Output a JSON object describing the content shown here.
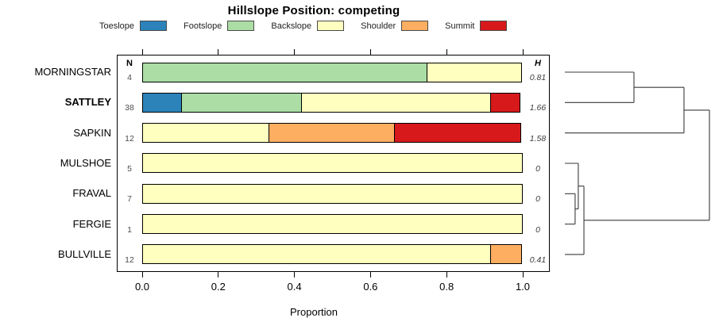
{
  "title": "Hillslope Position: competing",
  "columns": {
    "n": "N",
    "h": "H"
  },
  "axis": {
    "label": "Proportion",
    "ticks": [
      "0.0",
      "0.2",
      "0.4",
      "0.6",
      "0.8",
      "1.0"
    ]
  },
  "chart_data": {
    "type": "bar",
    "stacked": true,
    "orientation": "horizontal",
    "title": "Hillslope Position: competing",
    "xlabel": "Proportion",
    "xlim": [
      0,
      1
    ],
    "legend_position": "top",
    "categories": [
      {
        "name": "Toeslope",
        "color": "#2B83BA"
      },
      {
        "name": "Footslope",
        "color": "#ABDDA4"
      },
      {
        "name": "Backslope",
        "color": "#FFFFBF"
      },
      {
        "name": "Shoulder",
        "color": "#FDAE61"
      },
      {
        "name": "Summit",
        "color": "#D7191C"
      }
    ],
    "rows": [
      {
        "label": "MORNINGSTAR",
        "bold": false,
        "n": "4",
        "h": "0.81",
        "segments": [
          {
            "category": "Footslope",
            "value": 0.75
          },
          {
            "category": "Backslope",
            "value": 0.25
          }
        ]
      },
      {
        "label": "SATTLEY",
        "bold": true,
        "n": "38",
        "h": "1.66",
        "segments": [
          {
            "category": "Toeslope",
            "value": 0.105
          },
          {
            "category": "Footslope",
            "value": 0.316
          },
          {
            "category": "Backslope",
            "value": 0.5
          },
          {
            "category": "Summit",
            "value": 0.079
          }
        ]
      },
      {
        "label": "SAPKIN",
        "bold": false,
        "n": "12",
        "h": "1.58",
        "segments": [
          {
            "category": "Backslope",
            "value": 0.333
          },
          {
            "category": "Shoulder",
            "value": 0.334
          },
          {
            "category": "Summit",
            "value": 0.333
          }
        ]
      },
      {
        "label": "MULSHOE",
        "bold": false,
        "n": "5",
        "h": "0",
        "segments": [
          {
            "category": "Backslope",
            "value": 1.0
          }
        ]
      },
      {
        "label": "FRAVAL",
        "bold": false,
        "n": "7",
        "h": "0",
        "segments": [
          {
            "category": "Backslope",
            "value": 1.0
          }
        ]
      },
      {
        "label": "FERGIE",
        "bold": false,
        "n": "1",
        "h": "0",
        "segments": [
          {
            "category": "Backslope",
            "value": 1.0
          }
        ]
      },
      {
        "label": "BULLVILLE",
        "bold": false,
        "n": "12",
        "h": "0.41",
        "segments": [
          {
            "category": "Backslope",
            "value": 0.917
          },
          {
            "category": "Shoulder",
            "value": 0.083
          }
        ]
      }
    ],
    "dendrogram": {
      "position": "right",
      "leaf_order": [
        "MORNINGSTAR",
        "SATTLEY",
        "SAPKIN",
        "MULSHOE",
        "FRAVAL",
        "FERGIE",
        "BULLVILLE"
      ],
      "merges": [
        {
          "id": "M1",
          "a": "MORNINGSTAR",
          "b": "SATTLEY",
          "height": 0.478
        },
        {
          "id": "M2",
          "a": "M1",
          "b": "SAPKIN",
          "height": 0.824
        },
        {
          "id": "M3",
          "a": "FRAVAL",
          "b": "FERGIE",
          "height": 0.071
        },
        {
          "id": "M4",
          "a": "MULSHOE",
          "b": "M3",
          "height": 0.093
        },
        {
          "id": "M5",
          "a": "M4",
          "b": "BULLVILLE",
          "height": 0.132
        },
        {
          "id": "M6",
          "a": "M2",
          "b": "M5",
          "height": 1.0
        }
      ]
    }
  }
}
